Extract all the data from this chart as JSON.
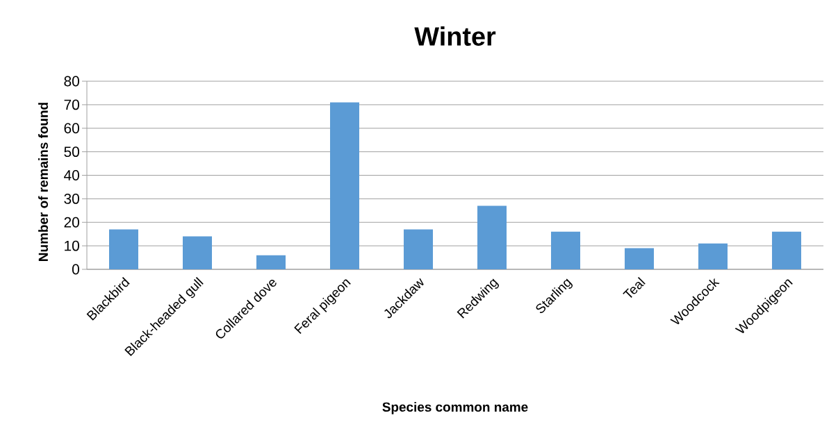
{
  "chart_data": {
    "type": "bar",
    "title": "Winter",
    "xlabel": "Species common name",
    "ylabel": "Number of remains found",
    "categories": [
      "Blackbird",
      "Black-headed gull",
      "Collared dove",
      "Feral pigeon",
      "Jackdaw",
      "Redwing",
      "Starling",
      "Teal",
      "Woodcock",
      "Woodpigeon"
    ],
    "values": [
      17,
      14,
      6,
      71,
      17,
      27,
      16,
      9,
      11,
      16
    ],
    "color": "#5b9bd5",
    "ylim": [
      0,
      80
    ],
    "yticks": [
      0,
      10,
      20,
      30,
      40,
      50,
      60,
      70,
      80
    ],
    "grid": "y"
  }
}
